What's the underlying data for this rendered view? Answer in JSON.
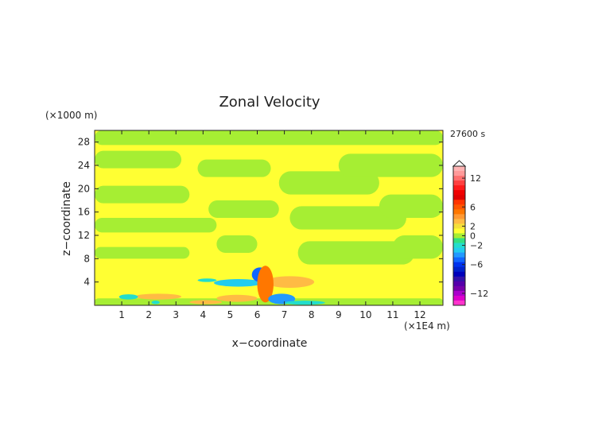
{
  "chart_data": {
    "type": "heatmap",
    "title": "Zonal Velocity",
    "xlabel": "x−coordinate",
    "ylabel": "z−coordinate",
    "x_unit": "(×1E4 m)",
    "y_unit": "(×1000 m)",
    "time_label": "27600 s",
    "xlim": [
      0,
      12.85
    ],
    "ylim": [
      0,
      30
    ],
    "xticks": [
      1,
      2,
      3,
      4,
      5,
      6,
      7,
      8,
      9,
      10,
      11,
      12
    ],
    "yticks": [
      4,
      8,
      12,
      16,
      20,
      24,
      28
    ],
    "colorbar": {
      "ticks": [
        "12",
        "6",
        "2",
        "0",
        "−2",
        "−6",
        "−12"
      ],
      "levels": [
        {
          "v": 14,
          "color": "#ffb3b3"
        },
        {
          "v": 13,
          "color": "#ff9a9a"
        },
        {
          "v": 12,
          "color": "#ff7070"
        },
        {
          "v": 11,
          "color": "#ff4040"
        },
        {
          "v": 10,
          "color": "#ff1a1a"
        },
        {
          "v": 9,
          "color": "#f00000"
        },
        {
          "v": 8,
          "color": "#e00000"
        },
        {
          "v": 7,
          "color": "#ff3300"
        },
        {
          "v": 6,
          "color": "#ff5500"
        },
        {
          "v": 5,
          "color": "#ff7700"
        },
        {
          "v": 4,
          "color": "#ff9933"
        },
        {
          "v": 3,
          "color": "#ffbb44"
        },
        {
          "v": 2,
          "color": "#f5e03a"
        },
        {
          "v": 1,
          "color": "#ffff33"
        },
        {
          "v": 0,
          "color": "#a6ee33"
        },
        {
          "v": -1,
          "color": "#33e080"
        },
        {
          "v": -2,
          "color": "#22ddcc"
        },
        {
          "v": -3,
          "color": "#22ccee"
        },
        {
          "v": -4,
          "color": "#2299ff"
        },
        {
          "v": -5,
          "color": "#1166ff"
        },
        {
          "v": -6,
          "color": "#0033ee"
        },
        {
          "v": -7,
          "color": "#0022cc"
        },
        {
          "v": -8,
          "color": "#0000bb"
        },
        {
          "v": -9,
          "color": "#3311aa"
        },
        {
          "v": -10,
          "color": "#5500aa"
        },
        {
          "v": -11,
          "color": "#7700aa"
        },
        {
          "v": -12,
          "color": "#aa00cc"
        },
        {
          "v": -13,
          "color": "#dd00cc"
        },
        {
          "v": -14,
          "color": "#ff33cc"
        }
      ]
    },
    "background_value_color": "#ffff33",
    "regions": [
      {
        "type": "band",
        "value": 0,
        "x0": 0,
        "x1": 12.85,
        "y0": 27.5,
        "y1": 30
      },
      {
        "type": "band",
        "value": 0,
        "x0": 0,
        "x1": 3.2,
        "y0": 23.5,
        "y1": 26.5
      },
      {
        "type": "band",
        "value": 0,
        "x0": 0,
        "x1": 3.5,
        "y0": 17.5,
        "y1": 20.5
      },
      {
        "type": "band",
        "value": 0,
        "x0": 0,
        "x1": 4.5,
        "y0": 12.5,
        "y1": 15
      },
      {
        "type": "band",
        "value": 0,
        "x0": 0,
        "x1": 3.5,
        "y0": 8,
        "y1": 10
      },
      {
        "type": "band",
        "value": 0,
        "x0": 3.8,
        "x1": 6.5,
        "y0": 22,
        "y1": 25
      },
      {
        "type": "band",
        "value": 0,
        "x0": 4.2,
        "x1": 6.8,
        "y0": 15,
        "y1": 18
      },
      {
        "type": "band",
        "value": 0,
        "x0": 4.5,
        "x1": 6.0,
        "y0": 9,
        "y1": 12
      },
      {
        "type": "band",
        "value": 0,
        "x0": 6.8,
        "x1": 10.5,
        "y0": 19,
        "y1": 23
      },
      {
        "type": "band",
        "value": 0,
        "x0": 7.2,
        "x1": 11.5,
        "y0": 13,
        "y1": 17
      },
      {
        "type": "band",
        "value": 0,
        "x0": 7.5,
        "x1": 11.8,
        "y0": 7,
        "y1": 11
      },
      {
        "type": "band",
        "value": 0,
        "x0": 9.0,
        "x1": 12.85,
        "y0": 22,
        "y1": 26
      },
      {
        "type": "band",
        "value": 0,
        "x0": 10.5,
        "x1": 12.85,
        "y0": 15,
        "y1": 19
      },
      {
        "type": "band",
        "value": 0,
        "x0": 11.0,
        "x1": 12.85,
        "y0": 8,
        "y1": 12
      },
      {
        "type": "band",
        "value": 0,
        "x0": 0,
        "x1": 12.85,
        "y0": 0,
        "y1": 1.2
      },
      {
        "type": "blob",
        "value": -3,
        "x0": 4.4,
        "x1": 6.2,
        "y0": 3.2,
        "y1": 4.5
      },
      {
        "type": "blob",
        "value": -5,
        "x0": 5.8,
        "x1": 6.4,
        "y0": 4.0,
        "y1": 6.5
      },
      {
        "type": "blob",
        "value": -2,
        "x0": 3.8,
        "x1": 4.5,
        "y0": 4.0,
        "y1": 4.6
      },
      {
        "type": "blob",
        "value": 3,
        "x0": 6.3,
        "x1": 8.1,
        "y0": 3.0,
        "y1": 5.0
      },
      {
        "type": "blob",
        "value": 5,
        "x0": 6.0,
        "x1": 6.6,
        "y0": 0.5,
        "y1": 6.8
      },
      {
        "type": "blob",
        "value": 3,
        "x0": 4.5,
        "x1": 6.0,
        "y0": 0.6,
        "y1": 1.8
      },
      {
        "type": "blob",
        "value": 3,
        "x0": 1.5,
        "x1": 3.2,
        "y0": 1.0,
        "y1": 2.0
      },
      {
        "type": "blob",
        "value": 3,
        "x0": 3.5,
        "x1": 4.7,
        "y0": 0.2,
        "y1": 0.9
      },
      {
        "type": "blob",
        "value": -4,
        "x0": 6.4,
        "x1": 7.4,
        "y0": 0.2,
        "y1": 2.0
      },
      {
        "type": "blob",
        "value": -2,
        "x0": 7.0,
        "x1": 8.5,
        "y0": 0.1,
        "y1": 0.8
      },
      {
        "type": "blob",
        "value": -2,
        "x0": 0.9,
        "x1": 1.6,
        "y0": 1.0,
        "y1": 1.9
      },
      {
        "type": "blob",
        "value": -2,
        "x0": 2.1,
        "x1": 2.4,
        "y0": 0.2,
        "y1": 0.8
      }
    ]
  }
}
